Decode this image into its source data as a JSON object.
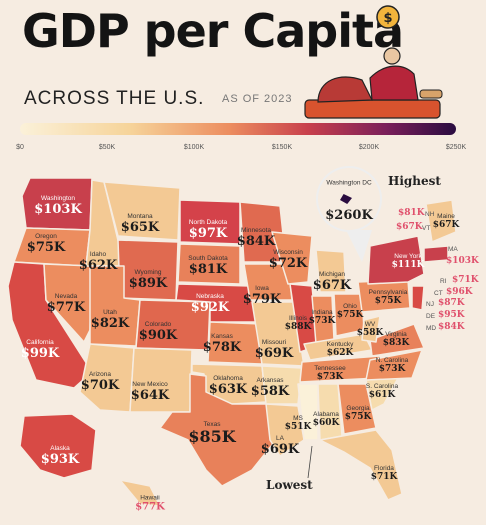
{
  "header": {
    "title": "GDP per Capita",
    "subtitle": "ACROSS THE U.S.",
    "as_of": "AS OF 2023"
  },
  "scale": {
    "ticks": [
      "$0",
      "$50K",
      "$100K",
      "$150K",
      "$200K",
      "$250K"
    ]
  },
  "callouts": {
    "highest": "Highest",
    "lowest": "Lowest"
  },
  "dc": {
    "name": "Washington DC",
    "value": "$260K"
  },
  "states": {
    "washington": {
      "name": "Washington",
      "value": "$103K"
    },
    "oregon": {
      "name": "Oregon",
      "value": "$75K"
    },
    "california": {
      "name": "California",
      "value": "$99K"
    },
    "nevada": {
      "name": "Nevada",
      "value": "$77K"
    },
    "idaho": {
      "name": "Idaho",
      "value": "$62K"
    },
    "montana": {
      "name": "Montana",
      "value": "$65K"
    },
    "wyoming": {
      "name": "Wyoming",
      "value": "$89K"
    },
    "utah": {
      "name": "Utah",
      "value": "$82K"
    },
    "colorado": {
      "name": "Colorado",
      "value": "$90K"
    },
    "arizona": {
      "name": "Arizona",
      "value": "$70K"
    },
    "new_mexico": {
      "name": "New Mexico",
      "value": "$64K"
    },
    "north_dakota": {
      "name": "North Dakota",
      "value": "$97K"
    },
    "south_dakota": {
      "name": "South Dakota",
      "value": "$81K"
    },
    "nebraska": {
      "name": "Nebraska",
      "value": "$92K"
    },
    "kansas": {
      "name": "Kansas",
      "value": "$78K"
    },
    "oklahoma": {
      "name": "Oklahoma",
      "value": "$63K"
    },
    "texas": {
      "name": "Texas",
      "value": "$85K"
    },
    "minnesota": {
      "name": "Minnesota",
      "value": "$84K"
    },
    "iowa": {
      "name": "Iowa",
      "value": "$79K"
    },
    "missouri": {
      "name": "Missouri",
      "value": "$69K"
    },
    "arkansas": {
      "name": "Arkansas",
      "value": "$58K"
    },
    "louisiana": {
      "name": "LA",
      "value": "$69K"
    },
    "wisconsin": {
      "name": "Wisconsin",
      "value": "$72K"
    },
    "illinois": {
      "name": "Illinois",
      "value": "$88K"
    },
    "michigan": {
      "name": "Michigan",
      "value": "$67K"
    },
    "indiana": {
      "name": "Indiana",
      "value": "$73K"
    },
    "ohio": {
      "name": "Ohio",
      "value": "$75K"
    },
    "kentucky": {
      "name": "Kentucky",
      "value": "$62K"
    },
    "tennessee": {
      "name": "Tennessee",
      "value": "$73K"
    },
    "mississippi": {
      "name": "MS",
      "value": "$51K"
    },
    "alabama": {
      "name": "Alabama",
      "value": "$60K"
    },
    "georgia": {
      "name": "Georgia",
      "value": "$75K"
    },
    "florida": {
      "name": "Florida",
      "value": "$71K"
    },
    "south_carolina": {
      "name": "S. Carolina",
      "value": "$61K"
    },
    "north_carolina": {
      "name": "N. Carolina",
      "value": "$73K"
    },
    "virginia": {
      "name": "Virginia",
      "value": "$83K"
    },
    "west_virginia": {
      "name": "WV",
      "value": "$58K"
    },
    "pennsylvania": {
      "name": "Pennsylvania",
      "value": "$75K"
    },
    "new_york": {
      "name": "New York",
      "value": "$111K"
    },
    "maine": {
      "name": "Maine",
      "value": "$67K"
    },
    "alaska": {
      "name": "Alaska",
      "value": "$93K"
    },
    "hawaii": {
      "name": "Hawaii",
      "value": "$77K"
    }
  },
  "northeast": {
    "nh": {
      "name": "NH",
      "value": "$81K"
    },
    "vt": {
      "name": "VT",
      "value": "$67K"
    },
    "ma": {
      "name": "MA",
      "value": "$103K"
    },
    "ri": {
      "name": "RI",
      "value": "$71K"
    },
    "ct": {
      "name": "CT",
      "value": "$96K"
    },
    "nj": {
      "name": "NJ",
      "value": "$87K"
    },
    "de": {
      "name": "DE",
      "value": "$95K"
    },
    "md": {
      "name": "MD",
      "value": "$84K"
    }
  }
}
